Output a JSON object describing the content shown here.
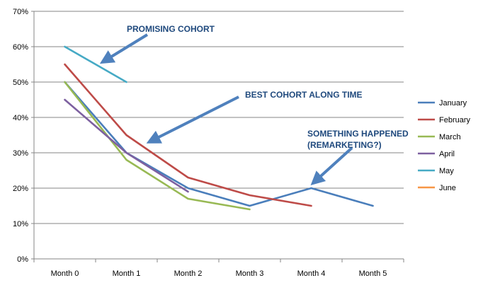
{
  "chart_data": {
    "type": "line",
    "categories": [
      "Month 0",
      "Month 1",
      "Month 2",
      "Month 3",
      "Month 4",
      "Month 5"
    ],
    "ylim": [
      0,
      0.7
    ],
    "y_ticks": [
      0,
      0.1,
      0.2,
      0.3,
      0.4,
      0.5,
      0.6,
      0.7
    ],
    "y_tick_labels": [
      "0%",
      "10%",
      "20%",
      "30%",
      "40%",
      "50%",
      "60%",
      "70%"
    ],
    "grid": "horizontal",
    "legend_position": "right",
    "series": [
      {
        "name": "January",
        "color": "#4a7ebb",
        "values": [
          0.5,
          0.3,
          0.2,
          0.15,
          0.2,
          0.15
        ]
      },
      {
        "name": "February",
        "color": "#be4b48",
        "values": [
          0.55,
          0.35,
          0.23,
          0.18,
          0.15,
          null
        ]
      },
      {
        "name": "March",
        "color": "#98b954",
        "values": [
          0.5,
          0.28,
          0.17,
          0.14,
          null,
          null
        ]
      },
      {
        "name": "April",
        "color": "#7d60a0",
        "values": [
          0.45,
          0.3,
          0.19,
          null,
          null,
          null
        ]
      },
      {
        "name": "May",
        "color": "#46aac5",
        "values": [
          0.6,
          0.5,
          null,
          null,
          null,
          null
        ]
      },
      {
        "name": "June",
        "color": "#f79646",
        "values": [
          null,
          null,
          null,
          null,
          null,
          null
        ]
      }
    ],
    "annotations": [
      {
        "lines": [
          "PROMISING COHORT"
        ]
      },
      {
        "lines": [
          "BEST COHORT ALONG TIME"
        ]
      },
      {
        "lines": [
          "SOMETHING HAPPENED",
          "(REMARKETING?)"
        ]
      }
    ],
    "annotation_color": "#1f497d",
    "arrow_color": "#4f81bd",
    "grid_color": "#868686"
  }
}
